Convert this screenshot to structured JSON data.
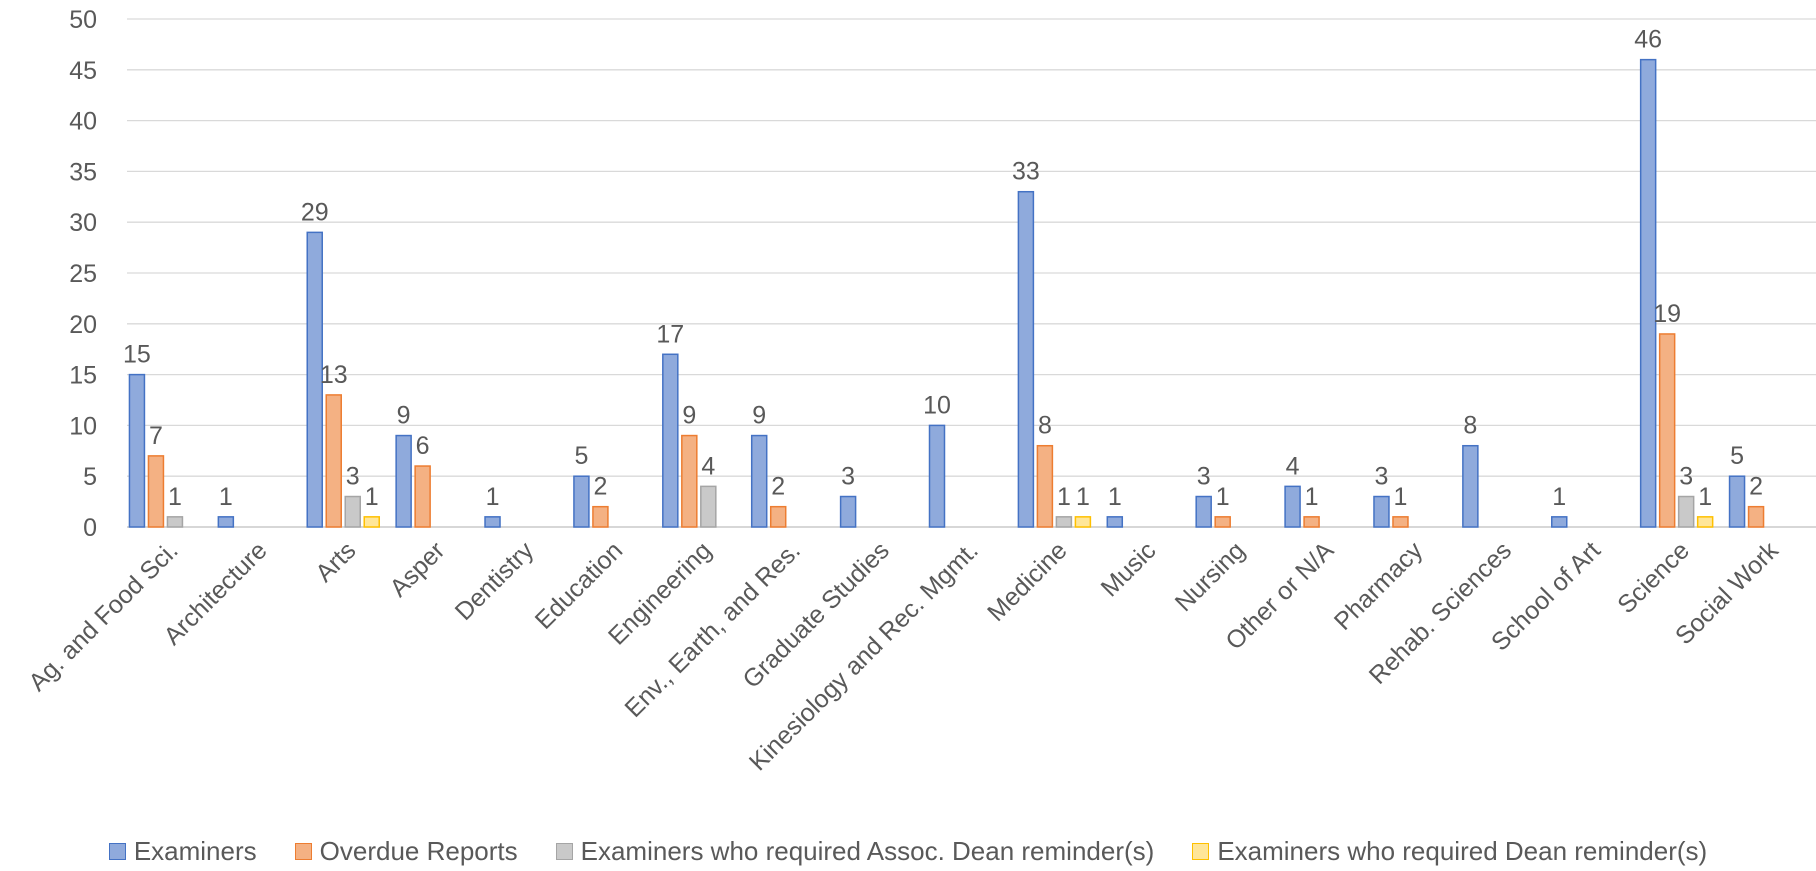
{
  "chart_data": {
    "type": "bar",
    "title": "",
    "xlabel": "",
    "ylabel": "",
    "ylim": [
      0,
      50
    ],
    "yticks": [
      0,
      5,
      10,
      15,
      20,
      25,
      30,
      35,
      40,
      45,
      50
    ],
    "grid": true,
    "legend_position": "bottom",
    "categories": [
      "Ag. and Food Sci.",
      "Architecture",
      "Arts",
      "Asper",
      "Dentistry",
      "Education",
      "Engineering",
      "Env., Earth, and Res.",
      "Graduate Studies",
      "Kinesiology and Rec. Mgmt.",
      "Medicine",
      "Music",
      "Nursing",
      "Other or N/A",
      "Pharmacy",
      "Rehab. Sciences",
      "School of Art",
      "Science",
      "Social Work"
    ],
    "series": [
      {
        "name": "Examiners",
        "color": "#8FAADC",
        "border": "#4472C4",
        "values": [
          15,
          1,
          29,
          9,
          1,
          5,
          17,
          9,
          3,
          10,
          33,
          1,
          3,
          4,
          3,
          8,
          1,
          46,
          5
        ]
      },
      {
        "name": "Overdue Reports",
        "color": "#F4B183",
        "border": "#ED7D31",
        "values": [
          7,
          null,
          13,
          6,
          null,
          2,
          9,
          2,
          null,
          null,
          8,
          null,
          1,
          1,
          1,
          null,
          null,
          19,
          2
        ]
      },
      {
        "name": "Examiners who required Assoc. Dean reminder(s)",
        "color": "#C9C9C9",
        "border": "#A5A5A5",
        "values": [
          1,
          null,
          3,
          null,
          null,
          null,
          4,
          null,
          null,
          null,
          1,
          null,
          null,
          null,
          null,
          null,
          null,
          3,
          null
        ]
      },
      {
        "name": "Examiners who required Dean reminder(s)",
        "color": "#FFE699",
        "border": "#FFC000",
        "values": [
          null,
          null,
          1,
          null,
          null,
          null,
          null,
          null,
          null,
          null,
          1,
          null,
          null,
          null,
          null,
          null,
          null,
          1,
          null
        ]
      }
    ]
  }
}
